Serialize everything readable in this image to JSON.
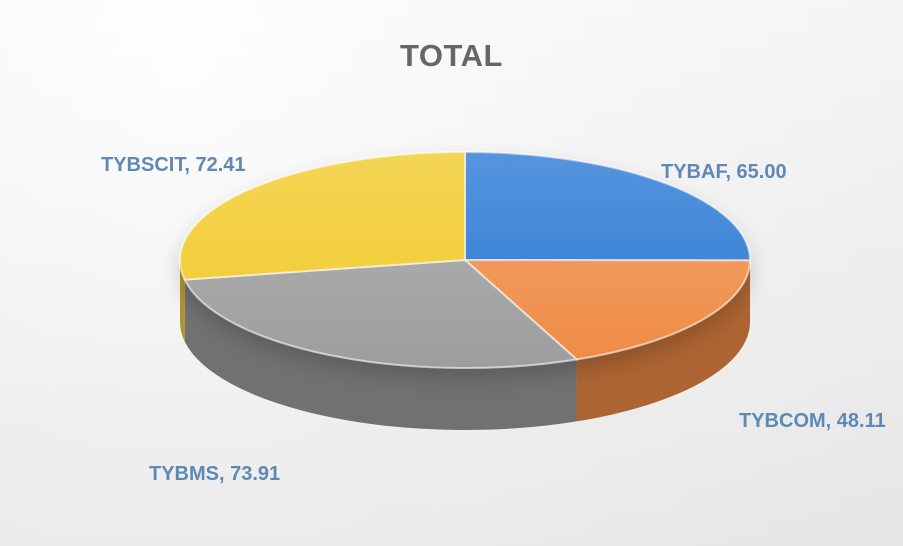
{
  "chart_data": {
    "type": "pie",
    "title": "TOTAL",
    "slices": [
      {
        "name": "TYBAF",
        "value": 65.0,
        "label": "TYBAF, 65.00",
        "color": "#3f86d8"
      },
      {
        "name": "TYBCOM",
        "value": 48.11,
        "label": "TYBCOM, 48.11",
        "color": "#ef8b45"
      },
      {
        "name": "TYBMS",
        "value": 73.91,
        "label": "TYBMS, 73.91",
        "color": "#9d9d9d"
      },
      {
        "name": "TYBSCIT",
        "value": 72.41,
        "label": "TYBSCIT, 72.41",
        "color": "#f3cf3d"
      }
    ],
    "style": "3d-pie",
    "legend": "none"
  }
}
